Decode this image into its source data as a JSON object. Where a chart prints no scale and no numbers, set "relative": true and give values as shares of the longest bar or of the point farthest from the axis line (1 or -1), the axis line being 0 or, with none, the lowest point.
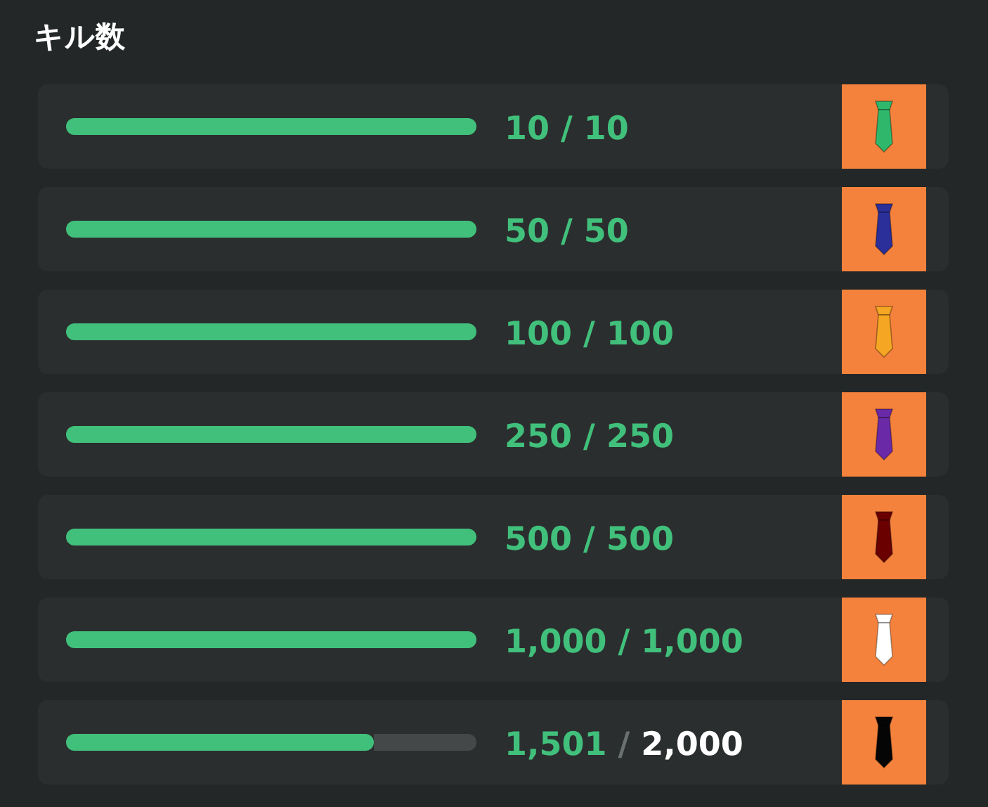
{
  "chart_data": {
    "type": "bar",
    "orientation": "horizontal",
    "relative": true,
    "stacked": true,
    "title": "キル数",
    "categories": [
      null,
      null,
      null,
      null,
      null,
      null,
      null
    ],
    "series": [
      {
        "color": "#41c07c",
        "values": [
          1,
          1,
          1,
          1,
          1,
          1,
          0.75
        ]
      },
      {
        "color": "#444848",
        "values": [
          0,
          0,
          0,
          0,
          0,
          0,
          0.25
        ]
      }
    ],
    "annotations": [
      "10 / 10",
      "50 / 50",
      "100 / 100",
      "250 / 250",
      "500 / 500",
      "1,000 / 1,000",
      "1,501 / 2,000"
    ]
  }
}
